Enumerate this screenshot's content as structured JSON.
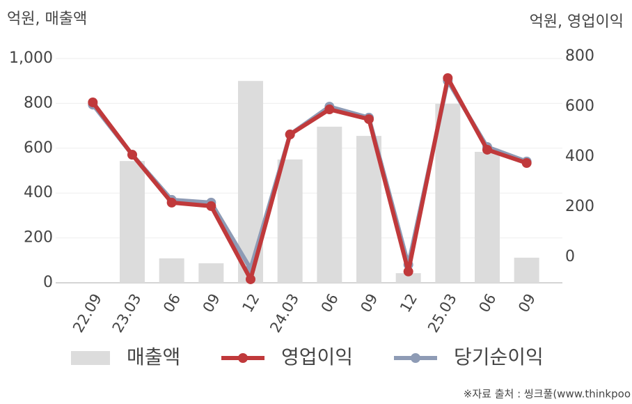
{
  "chart_data": {
    "type": "bar-line",
    "y_label": "억원, 매출액",
    "y2_label": "억원, 영업이익",
    "categories": [
      "22.09",
      "23.03",
      "06",
      "09",
      "12",
      "24.03",
      "06",
      "09",
      "12",
      "25.03",
      "06",
      "09"
    ],
    "series": [
      {
        "name": "매출액",
        "type": "bar",
        "color": "#dcdcdc",
        "values": [
          null,
          543,
          109,
          87,
          900,
          550,
          696,
          655,
          43,
          798,
          584,
          112
        ]
      },
      {
        "name": "영업이익",
        "type": "line",
        "axis": "y2",
        "color": "#c0393b",
        "values": [
          617,
          408,
          217,
          203,
          -89,
          489,
          589,
          550,
          -58,
          714,
          428,
          375
        ]
      },
      {
        "name": "당기순이익",
        "type": "line",
        "axis": "y2",
        "color": "#8e9bb5",
        "values": [
          608,
          408,
          228,
          217,
          -47,
          489,
          600,
          556,
          -31,
          703,
          439,
          381
        ]
      }
    ],
    "ylim": [
      0,
      1000
    ],
    "yticks": [
      0,
      200,
      400,
      600,
      800,
      {
        "value": 1000,
        "label": "1,000"
      }
    ],
    "y2lim": [
      -103,
      792
    ],
    "y2ticks": [
      0,
      200,
      400,
      600,
      800
    ],
    "grid": true,
    "legend": "bottom",
    "source": "※자료 출처 : 씽크풀(www.thinkpoo"
  }
}
